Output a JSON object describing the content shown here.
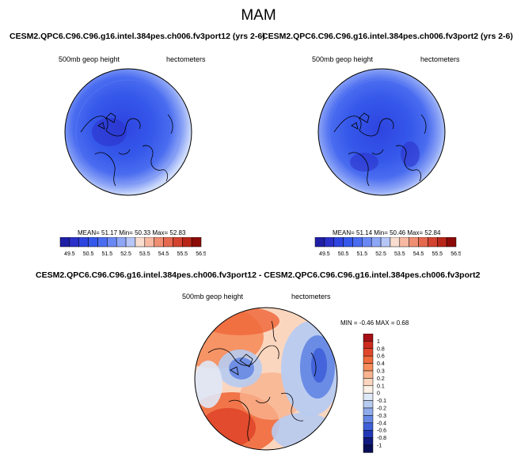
{
  "title": "MAM",
  "chart_data": [
    {
      "type": "heatmap",
      "title": "CESM2.QPC6.C96.C96.g16.intel.384pes.ch006.fv3port12 (yrs 2-6)",
      "left_label": "500mb geop height",
      "right_label": "hectometers",
      "stats": {
        "mean_label": "MEAN=",
        "mean": "51.17",
        "min_label": "Min=",
        "min": "50.33",
        "max_label": "Max=",
        "max": "52.83"
      },
      "colorbar": {
        "levels": [
          "49.5",
          "50",
          "50.5",
          "51",
          "51.5",
          "52",
          "52.5",
          "53",
          "53.5",
          "54",
          "54.5",
          "55",
          "55.5",
          "56",
          "56.5"
        ],
        "tick_labels": [
          "49.5",
          "50.5",
          "51.5",
          "52.5",
          "53.5",
          "54.5",
          "55.5",
          "56.5"
        ],
        "colors": [
          "#1f1fa6",
          "#2a30c8",
          "#2e44e0",
          "#3558ea",
          "#4a6cf0",
          "#6a88f3",
          "#8ea6f6",
          "#b6c6f8",
          "#f9ddcf",
          "#f7b9a2",
          "#ef8e72",
          "#e5694f",
          "#d3432f",
          "#b82618",
          "#8c0b08"
        ]
      }
    },
    {
      "type": "heatmap",
      "title": "CESM2.QPC6.C96.C96.g16.intel.384pes.ch006.fv3port2 (yrs 2-6)",
      "left_label": "500mb geop height",
      "right_label": "hectometers",
      "stats": {
        "mean_label": "MEAN=",
        "mean": "51.14",
        "min_label": "Min=",
        "min": "50.46",
        "max_label": "Max=",
        "max": "52.84"
      },
      "colorbar": {
        "levels": [
          "49.5",
          "50",
          "50.5",
          "51",
          "51.5",
          "52",
          "52.5",
          "53",
          "53.5",
          "54",
          "54.5",
          "55",
          "55.5",
          "56",
          "56.5"
        ],
        "tick_labels": [
          "49.5",
          "50.5",
          "51.5",
          "52.5",
          "53.5",
          "54.5",
          "55.5",
          "56.5"
        ],
        "colors": [
          "#1f1fa6",
          "#2a30c8",
          "#2e44e0",
          "#3558ea",
          "#4a6cf0",
          "#6a88f3",
          "#8ea6f6",
          "#b6c6f8",
          "#f9ddcf",
          "#f7b9a2",
          "#ef8e72",
          "#e5694f",
          "#d3432f",
          "#b82618",
          "#8c0b08"
        ]
      }
    },
    {
      "type": "heatmap",
      "title": "CESM2.QPC6.C96.C96.g16.intel.384pes.ch006.fv3port12 - CESM2.QPC6.C96.C96.g16.intel.384pes.ch006.fv3port2",
      "left_label": "500mb geop height",
      "right_label": "hectometers",
      "stats": {
        "min_label": "MIN =",
        "min": "-0.46",
        "max_label": "MAX =",
        "max": "0.68"
      },
      "colorbar": {
        "levels": [
          "1",
          "0.8",
          "0.6",
          "0.4",
          "0.3",
          "0.2",
          "0.1",
          "0",
          "-0.1",
          "-0.2",
          "-0.3",
          "-0.4",
          "-0.6",
          "-0.8",
          "-1"
        ],
        "colors": [
          "#a50f15",
          "#cb2a1e",
          "#e0472a",
          "#ef6a3c",
          "#f58d5c",
          "#f9b38e",
          "#fbd6bf",
          "#fbf1e6",
          "#dfe8f7",
          "#b7cbf1",
          "#8fabec",
          "#6688e4",
          "#3f5fd8",
          "#2338b8",
          "#101a7e",
          "#080e56"
        ]
      }
    }
  ],
  "colors": {
    "ocean_blue": "#3d63e8",
    "deep_blue": "#2b44d6",
    "diff_positive": "#e0472a",
    "diff_negative": "#3f5fd8"
  }
}
